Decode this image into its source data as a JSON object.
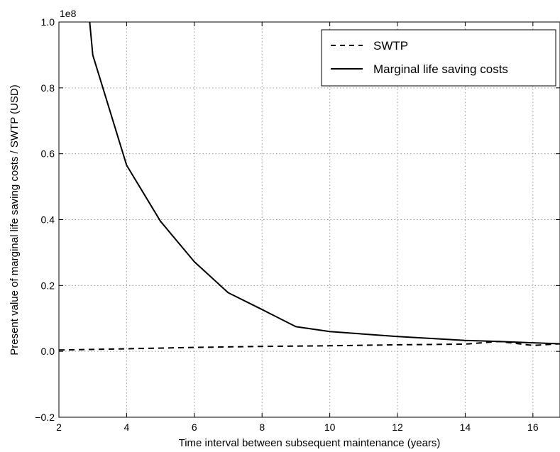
{
  "chart_data": {
    "type": "line",
    "xlabel": "Time interval between subsequent maintenance (years)",
    "ylabel": "Present value of marginal life saving costs / SWTP (USD)",
    "offset_text": "1e8",
    "xlim": [
      2,
      16.8
    ],
    "ylim": [
      -0.2,
      1.0
    ],
    "xticks": [
      2,
      4,
      6,
      8,
      10,
      12,
      14,
      16
    ],
    "xtick_labels": [
      "2",
      "4",
      "6",
      "8",
      "10",
      "12",
      "14",
      "16"
    ],
    "yticks": [
      -0.2,
      0.0,
      0.2,
      0.4,
      0.6,
      0.8,
      1.0
    ],
    "ytick_labels": [
      "−0.2",
      "0.0",
      "0.2",
      "0.4",
      "0.6",
      "0.8",
      "1.0"
    ],
    "grid": true,
    "legend_position": "top-right",
    "series": [
      {
        "name": "SWTP",
        "style": "dashed",
        "color": "#000000",
        "x": [
          2,
          4,
          6,
          8,
          10,
          12,
          14,
          15,
          16,
          16.8
        ],
        "y": [
          0.004,
          0.008,
          0.012,
          0.015,
          0.017,
          0.02,
          0.022,
          0.03,
          0.018,
          0.023
        ]
      },
      {
        "name": "Marginal life saving costs",
        "style": "solid",
        "color": "#000000",
        "x": [
          2.8,
          3,
          4,
          5,
          6,
          7,
          8,
          9,
          10,
          12,
          14,
          15,
          16,
          16.8
        ],
        "y": [
          1.12,
          0.9,
          0.565,
          0.395,
          0.272,
          0.178,
          0.127,
          0.075,
          0.06,
          0.045,
          0.033,
          0.03,
          0.026,
          0.023
        ]
      }
    ]
  }
}
